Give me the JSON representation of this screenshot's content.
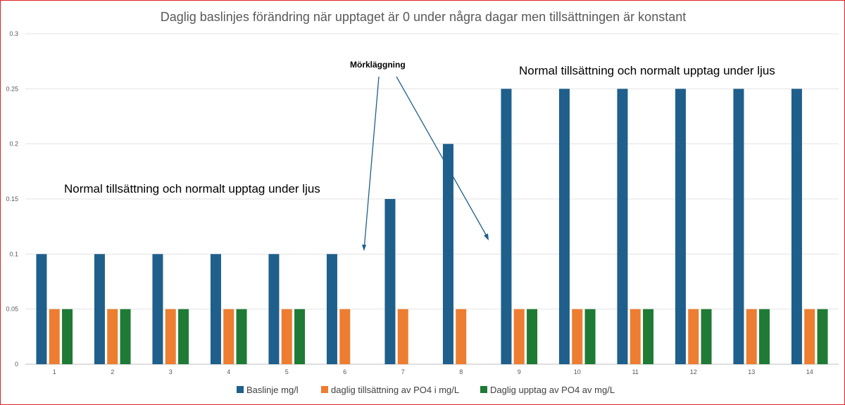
{
  "chart_data": {
    "type": "bar",
    "title": "Daglig baslinjes förändring när upptaget är 0 under några dagar men tillsättningen är konstant",
    "xlabel": "",
    "ylabel": "",
    "categories": [
      "1",
      "2",
      "3",
      "4",
      "5",
      "6",
      "7",
      "8",
      "9",
      "10",
      "11",
      "12",
      "13",
      "14"
    ],
    "ylim": [
      0,
      0.3
    ],
    "y_ticks": [
      "0",
      "0.05",
      "0.1",
      "0.15",
      "0.2",
      "0.25",
      "0.3"
    ],
    "grid": true,
    "legend_position": "bottom",
    "series": [
      {
        "name": "Baslinje mg/l",
        "color": "#1f5f8b",
        "values": [
          0.1,
          0.1,
          0.1,
          0.1,
          0.1,
          0.1,
          0.15,
          0.2,
          0.25,
          0.25,
          0.25,
          0.25,
          0.25,
          0.25
        ]
      },
      {
        "name": "daglig tillsättning av PO4 i mg/L",
        "color": "#ed7d31",
        "values": [
          0.05,
          0.05,
          0.05,
          0.05,
          0.05,
          0.05,
          0.05,
          0.05,
          0.05,
          0.05,
          0.05,
          0.05,
          0.05,
          0.05
        ]
      },
      {
        "name": "Daglig upptag av PO4 av mg/L",
        "color": "#1e7a35",
        "values": [
          0.05,
          0.05,
          0.05,
          0.05,
          0.05,
          0,
          0,
          0,
          0.05,
          0.05,
          0.05,
          0.05,
          0.05,
          0.05
        ]
      }
    ],
    "annotations": [
      {
        "text": "Normal tillsättning och normalt upptag under ljus"
      },
      {
        "text": "Mörkläggning"
      },
      {
        "text": "Normal tillsättning och normalt upptag under ljus"
      }
    ]
  }
}
